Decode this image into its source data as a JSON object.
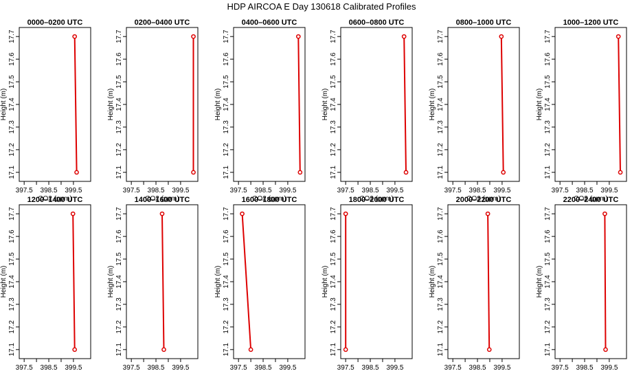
{
  "figure": {
    "title": "HDP AIRCOA E  Day 130618  Calibrated Profiles",
    "colors": {
      "profile": "#dd0000",
      "axes": "#000000",
      "background": "#ffffff"
    }
  },
  "chart_data": [
    {
      "type": "line",
      "title": "0000–0200 UTC",
      "xlabel": "CO2 (ppm)",
      "ylabel": "Height (m)",
      "xlim": [
        397.3,
        400.2
      ],
      "ylim": [
        17.06,
        17.74
      ],
      "x_ticks": [
        397.5,
        398.0,
        398.5,
        399.0,
        399.5
      ],
      "x_tick_labels": [
        "397.5",
        "",
        "398.5",
        "",
        "399.5"
      ],
      "y_ticks": [
        17.1,
        17.2,
        17.3,
        17.4,
        17.5,
        17.6,
        17.7
      ],
      "y_tick_labels": [
        "17.1",
        "17.2",
        "17.3",
        "17.4",
        "17.5",
        "17.6",
        "17.7"
      ],
      "grid": false,
      "legend": "none",
      "x": [
        399.55,
        399.63
      ],
      "y": [
        17.7,
        17.1
      ]
    },
    {
      "type": "line",
      "title": "0200–0400 UTC",
      "xlabel": "CO2 (ppm)",
      "ylabel": "Height (m)",
      "xlim": [
        397.3,
        400.2
      ],
      "ylim": [
        17.06,
        17.74
      ],
      "x_ticks": [
        397.5,
        398.0,
        398.5,
        399.0,
        399.5
      ],
      "x_tick_labels": [
        "397.5",
        "",
        "398.5",
        "",
        "399.5"
      ],
      "y_ticks": [
        17.1,
        17.2,
        17.3,
        17.4,
        17.5,
        17.6,
        17.7
      ],
      "y_tick_labels": [
        "17.1",
        "17.2",
        "17.3",
        "17.4",
        "17.5",
        "17.6",
        "17.7"
      ],
      "grid": false,
      "legend": "none",
      "x": [
        400.02,
        400.02
      ],
      "y": [
        17.7,
        17.1
      ]
    },
    {
      "type": "line",
      "title": "0400–0600 UTC",
      "xlabel": "CO2 (ppm)",
      "ylabel": "Height (m)",
      "xlim": [
        397.3,
        400.2
      ],
      "ylim": [
        17.06,
        17.74
      ],
      "x_ticks": [
        397.5,
        398.0,
        398.5,
        399.0,
        399.5
      ],
      "x_tick_labels": [
        "397.5",
        "",
        "398.5",
        "",
        "399.5"
      ],
      "y_ticks": [
        17.1,
        17.2,
        17.3,
        17.4,
        17.5,
        17.6,
        17.7
      ],
      "y_tick_labels": [
        "17.1",
        "17.2",
        "17.3",
        "17.4",
        "17.5",
        "17.6",
        "17.7"
      ],
      "grid": false,
      "legend": "none",
      "x": [
        399.93,
        400.0
      ],
      "y": [
        17.7,
        17.1
      ]
    },
    {
      "type": "line",
      "title": "0600–0800 UTC",
      "xlabel": "CO2 (ppm)",
      "ylabel": "Height (m)",
      "xlim": [
        397.3,
        400.2
      ],
      "ylim": [
        17.06,
        17.74
      ],
      "x_ticks": [
        397.5,
        398.0,
        398.5,
        399.0,
        399.5
      ],
      "x_tick_labels": [
        "397.5",
        "",
        "398.5",
        "",
        "399.5"
      ],
      "y_ticks": [
        17.1,
        17.2,
        17.3,
        17.4,
        17.5,
        17.6,
        17.7
      ],
      "y_tick_labels": [
        "17.1",
        "17.2",
        "17.3",
        "17.4",
        "17.5",
        "17.6",
        "17.7"
      ],
      "grid": false,
      "legend": "none",
      "x": [
        399.87,
        399.95
      ],
      "y": [
        17.7,
        17.1
      ]
    },
    {
      "type": "line",
      "title": "0800–1000 UTC",
      "xlabel": "CO2 (ppm)",
      "ylabel": "Height (m)",
      "xlim": [
        397.3,
        400.2
      ],
      "ylim": [
        17.06,
        17.74
      ],
      "x_ticks": [
        397.5,
        398.0,
        398.5,
        399.0,
        399.5
      ],
      "x_tick_labels": [
        "397.5",
        "",
        "398.5",
        "",
        "399.5"
      ],
      "y_ticks": [
        17.1,
        17.2,
        17.3,
        17.4,
        17.5,
        17.6,
        17.7
      ],
      "y_tick_labels": [
        "17.1",
        "17.2",
        "17.3",
        "17.4",
        "17.5",
        "17.6",
        "17.7"
      ],
      "grid": false,
      "legend": "none",
      "x": [
        399.47,
        399.55
      ],
      "y": [
        17.7,
        17.1
      ]
    },
    {
      "type": "line",
      "title": "1000–1200 UTC",
      "xlabel": "CO2 (ppm)",
      "ylabel": "Height (m)",
      "xlim": [
        397.3,
        400.2
      ],
      "ylim": [
        17.06,
        17.74
      ],
      "x_ticks": [
        397.5,
        398.0,
        398.5,
        399.0,
        399.5
      ],
      "x_tick_labels": [
        "397.5",
        "",
        "398.5",
        "",
        "399.5"
      ],
      "y_ticks": [
        17.1,
        17.2,
        17.3,
        17.4,
        17.5,
        17.6,
        17.7
      ],
      "y_tick_labels": [
        "17.1",
        "17.2",
        "17.3",
        "17.4",
        "17.5",
        "17.6",
        "17.7"
      ],
      "grid": false,
      "legend": "none",
      "x": [
        399.87,
        399.95
      ],
      "y": [
        17.7,
        17.1
      ]
    },
    {
      "type": "line",
      "title": "1200–1400 UTC",
      "xlabel": "CO2 (ppm)",
      "ylabel": "Height (m)",
      "xlim": [
        397.3,
        400.2
      ],
      "ylim": [
        17.06,
        17.74
      ],
      "x_ticks": [
        397.5,
        398.0,
        398.5,
        399.0,
        399.5
      ],
      "x_tick_labels": [
        "397.5",
        "",
        "398.5",
        "",
        "399.5"
      ],
      "y_ticks": [
        17.1,
        17.2,
        17.3,
        17.4,
        17.5,
        17.6,
        17.7
      ],
      "y_tick_labels": [
        "17.1",
        "17.2",
        "17.3",
        "17.4",
        "17.5",
        "17.6",
        "17.7"
      ],
      "grid": false,
      "legend": "none",
      "x": [
        399.48,
        399.55
      ],
      "y": [
        17.7,
        17.1
      ]
    },
    {
      "type": "line",
      "title": "1400–1600 UTC",
      "xlabel": "CO2 (ppm)",
      "ylabel": "Height (m)",
      "xlim": [
        397.3,
        400.2
      ],
      "ylim": [
        17.06,
        17.74
      ],
      "x_ticks": [
        397.5,
        398.0,
        398.5,
        399.0,
        399.5
      ],
      "x_tick_labels": [
        "397.5",
        "",
        "398.5",
        "",
        "399.5"
      ],
      "y_ticks": [
        17.1,
        17.2,
        17.3,
        17.4,
        17.5,
        17.6,
        17.7
      ],
      "y_tick_labels": [
        "17.1",
        "17.2",
        "17.3",
        "17.4",
        "17.5",
        "17.6",
        "17.7"
      ],
      "grid": false,
      "legend": "none",
      "x": [
        398.75,
        398.82
      ],
      "y": [
        17.7,
        17.1
      ]
    },
    {
      "type": "line",
      "title": "1600–1800 UTC",
      "xlabel": "CO2 (ppm)",
      "ylabel": "Height (m)",
      "xlim": [
        397.3,
        400.2
      ],
      "ylim": [
        17.06,
        17.74
      ],
      "x_ticks": [
        397.5,
        398.0,
        398.5,
        399.0,
        399.5
      ],
      "x_tick_labels": [
        "397.5",
        "",
        "398.5",
        "",
        "399.5"
      ],
      "y_ticks": [
        17.1,
        17.2,
        17.3,
        17.4,
        17.5,
        17.6,
        17.7
      ],
      "y_tick_labels": [
        "17.1",
        "17.2",
        "17.3",
        "17.4",
        "17.5",
        "17.6",
        "17.7"
      ],
      "grid": false,
      "legend": "none",
      "x": [
        397.65,
        398.0
      ],
      "y": [
        17.7,
        17.1
      ]
    },
    {
      "type": "line",
      "title": "1800–2000 UTC",
      "xlabel": "CO2 (ppm)",
      "ylabel": "Height (m)",
      "xlim": [
        397.3,
        400.2
      ],
      "ylim": [
        17.06,
        17.74
      ],
      "x_ticks": [
        397.5,
        398.0,
        398.5,
        399.0,
        399.5
      ],
      "x_tick_labels": [
        "397.5",
        "",
        "398.5",
        "",
        "399.5"
      ],
      "y_ticks": [
        17.1,
        17.2,
        17.3,
        17.4,
        17.5,
        17.6,
        17.7
      ],
      "y_tick_labels": [
        "17.1",
        "17.2",
        "17.3",
        "17.4",
        "17.5",
        "17.6",
        "17.7"
      ],
      "grid": false,
      "legend": "none",
      "x": [
        397.5,
        397.5
      ],
      "y": [
        17.7,
        17.1
      ]
    },
    {
      "type": "line",
      "title": "2000–2200 UTC",
      "xlabel": "CO2 (ppm)",
      "ylabel": "Height (m)",
      "xlim": [
        397.3,
        400.2
      ],
      "ylim": [
        17.06,
        17.74
      ],
      "x_ticks": [
        397.5,
        398.0,
        398.5,
        399.0,
        399.5
      ],
      "x_tick_labels": [
        "397.5",
        "",
        "398.5",
        "",
        "399.5"
      ],
      "y_ticks": [
        17.1,
        17.2,
        17.3,
        17.4,
        17.5,
        17.6,
        17.7
      ],
      "y_tick_labels": [
        "17.1",
        "17.2",
        "17.3",
        "17.4",
        "17.5",
        "17.6",
        "17.7"
      ],
      "grid": false,
      "legend": "none",
      "x": [
        398.92,
        398.98
      ],
      "y": [
        17.7,
        17.1
      ]
    },
    {
      "type": "line",
      "title": "2200–2400 UTC",
      "xlabel": "CO2 (ppm)",
      "ylabel": "Height (m)",
      "xlim": [
        397.3,
        400.2
      ],
      "ylim": [
        17.06,
        17.74
      ],
      "x_ticks": [
        397.5,
        398.0,
        398.5,
        399.0,
        399.5
      ],
      "x_tick_labels": [
        "397.5",
        "",
        "398.5",
        "",
        "399.5"
      ],
      "y_ticks": [
        17.1,
        17.2,
        17.3,
        17.4,
        17.5,
        17.6,
        17.7
      ],
      "y_tick_labels": [
        "17.1",
        "17.2",
        "17.3",
        "17.4",
        "17.5",
        "17.6",
        "17.7"
      ],
      "grid": false,
      "legend": "none",
      "x": [
        399.32,
        399.35
      ],
      "y": [
        17.7,
        17.1
      ]
    }
  ]
}
